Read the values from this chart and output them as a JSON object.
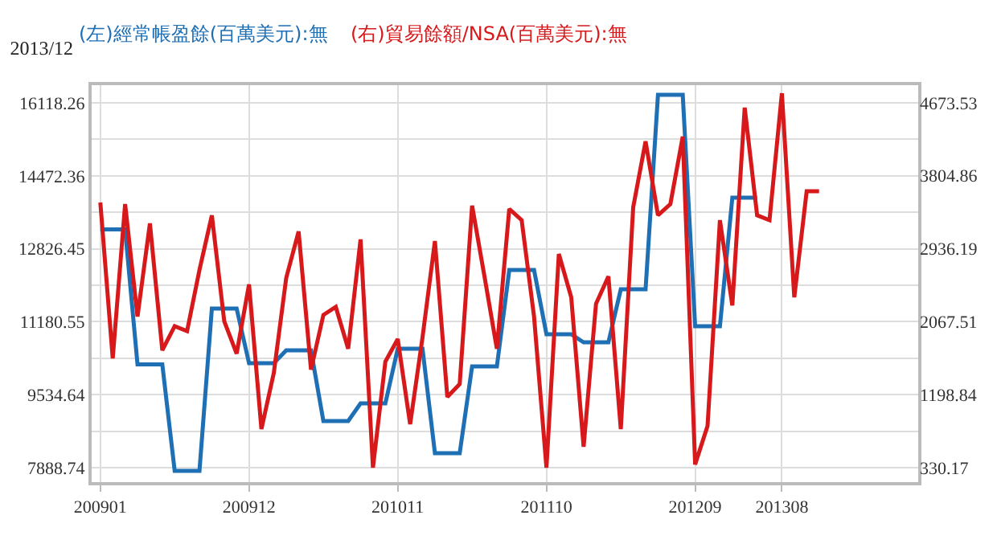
{
  "chart_data": {
    "type": "line",
    "title": "2013/12",
    "categories": [
      "200901",
      null,
      null,
      null,
      null,
      null,
      null,
      null,
      null,
      null,
      null,
      null,
      "200912",
      null,
      null,
      null,
      null,
      null,
      null,
      null,
      null,
      null,
      null,
      null,
      "201011",
      null,
      null,
      null,
      null,
      null,
      null,
      null,
      null,
      null,
      null,
      null,
      "201110",
      null,
      null,
      null,
      null,
      null,
      null,
      null,
      null,
      null,
      null,
      null,
      "201209",
      null,
      null,
      null,
      null,
      null,
      null,
      "201308",
      null,
      null,
      null
    ],
    "series": [
      {
        "name": "(左)經常帳盈餘(百萬美元):無",
        "color": "#1f6fb4",
        "type": "step",
        "values": [
          13264,
          13264,
          13264,
          10219,
          10219,
          10219,
          7816,
          7816,
          7816,
          11477,
          11477,
          11477,
          10245,
          10245,
          10245,
          10535,
          10535,
          10535,
          8940,
          8940,
          8940,
          9339,
          9339,
          9339,
          10571,
          10571,
          10571,
          8215,
          8215,
          8215,
          10172,
          10172,
          10172,
          12347,
          12347,
          12347,
          10898,
          10898,
          10898,
          10716,
          10716,
          10716,
          11912,
          11912,
          11912,
          16299,
          16299,
          16299,
          11079,
          11079,
          11079,
          13979,
          13979,
          13979,
          null,
          null,
          null,
          null,
          null
        ]
      },
      {
        "name": "(右)貿易餘額/NSA(百萬美元):無",
        "color": "#d7191c",
        "axis": "y2",
        "values": [
          3487,
          1631,
          3467,
          2128,
          3238,
          1727,
          2014,
          1956,
          2683,
          3334,
          2071,
          1688,
          2511,
          789,
          1459,
          2588,
          3142,
          1497,
          2148,
          2243,
          1746,
          3047,
          330,
          1593,
          1861,
          847,
          1880,
          3027,
          1172,
          1325,
          3448,
          2607,
          1746,
          3410,
          3276,
          2128,
          330,
          2874,
          2358,
          579,
          2281,
          2607,
          789,
          3429,
          4214,
          3334,
          3467,
          4271,
          368,
          827,
          3276,
          2262,
          4615,
          3334,
          3276,
          4787,
          2358,
          3620,
          3620
        ]
      }
    ],
    "ylim": [
      7563,
      16517
    ],
    "yticks": [
      7888.74,
      {
        "value": 8711.69,
        "label": null
      },
      9534.64,
      {
        "value": 10357.59,
        "label": null
      },
      11180.55,
      {
        "value": 12003.5,
        "label": null
      },
      12826.45,
      {
        "value": 13649.4,
        "label": null
      },
      14472.36,
      {
        "value": 15295.31,
        "label": null
      },
      16118.26
    ],
    "y2lim": [
      158,
      4883
    ],
    "y2ticks": [
      330.17,
      1198.84,
      2067.51,
      2936.19,
      3804.86,
      4673.53
    ],
    "grid": true,
    "marker": "none",
    "line_style": "solid"
  }
}
